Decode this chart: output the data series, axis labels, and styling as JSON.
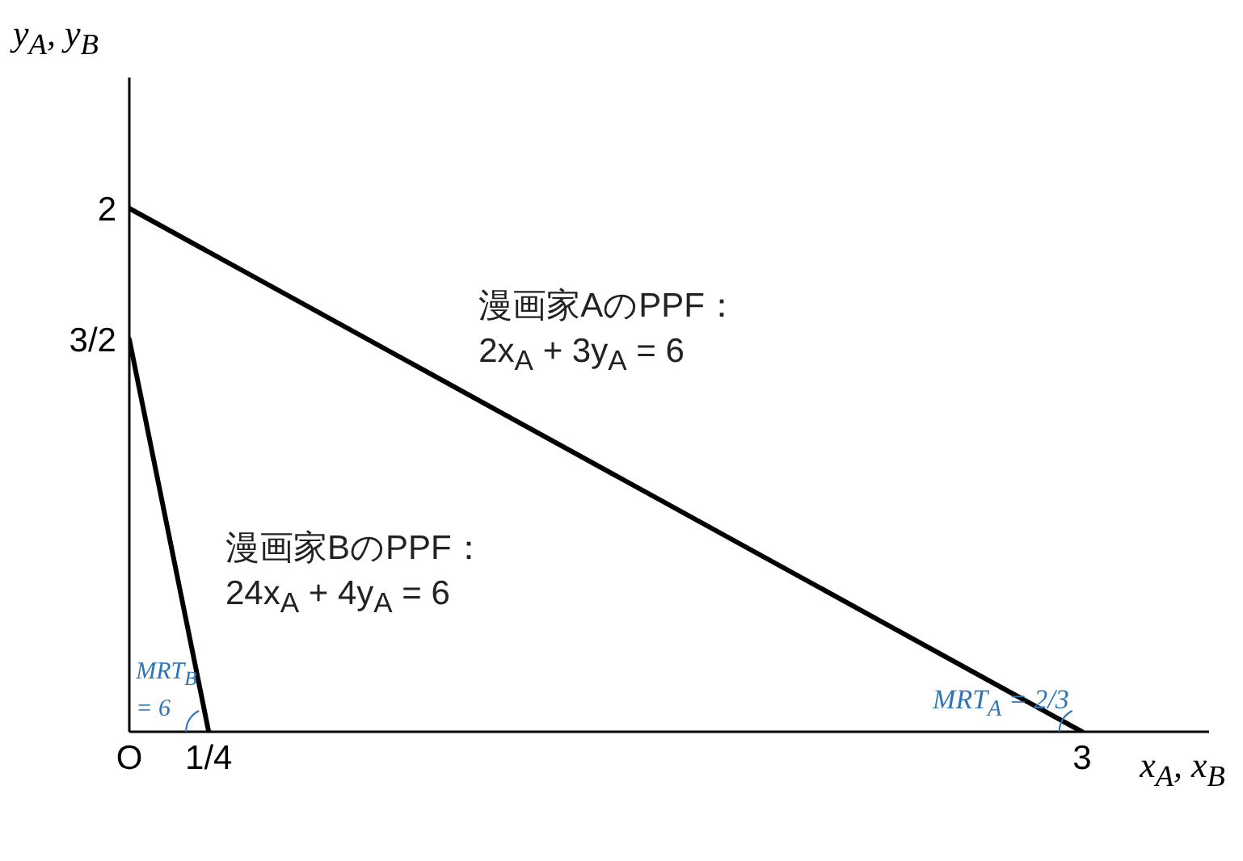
{
  "chart_data": {
    "type": "line",
    "xlabel": "x$_{A}$, x$_{B}$",
    "ylabel": "y$_{A}$, y$_{B}$",
    "series": [
      {
        "color": "#000000",
        "x": [
          0,
          3
        ],
        "values": [
          2,
          0
        ]
      },
      {
        "color": "#000000",
        "x": [
          0,
          0.25
        ],
        "values": [
          1.5,
          0
        ]
      }
    ],
    "xlim": [
      0,
      3.4
    ],
    "ylim": [
      0,
      2.5
    ],
    "xticks": [
      {
        "value": 0,
        "label": "O"
      },
      {
        "value": 0.25,
        "label": "1/4"
      },
      3
    ],
    "yticks": [
      {
        "value": 1.5,
        "label": "3/2"
      },
      2
    ],
    "annotations": [
      {
        "text": "漫画家AのPPF：\n2x$_{A}$ + 3y$_{A}$ = 6",
        "x": 1.1,
        "y": 1.267
      },
      {
        "text": "漫画家BのPPF：\n24x$_{A}$ + 4y$_{A}$ = 6",
        "x": 0.15,
        "y": 0.6
      },
      {
        "text": "MRT$_{B}$\n= 6",
        "x": 0.25,
        "y": 0
      },
      {
        "text": "MRT$_{A}$ = 2/3",
        "x": 3,
        "y": 0
      }
    ]
  }
}
